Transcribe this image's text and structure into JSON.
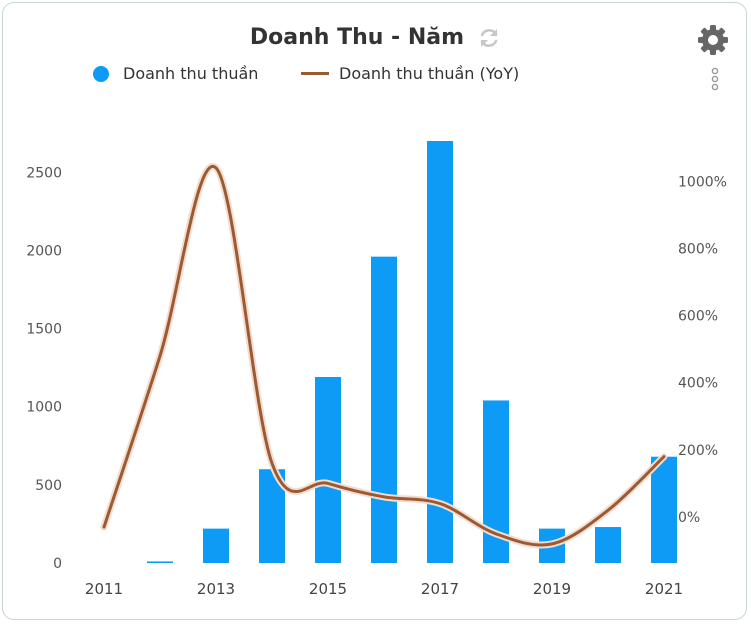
{
  "header": {
    "title": "Doanh Thu - Năm"
  },
  "icons": {
    "refresh": "refresh-icon",
    "settings": "gear-icon",
    "more": "more-vertical-icon"
  },
  "legend": {
    "bar_label": "Doanh thu thuần",
    "line_label": "Doanh thu thuần (YoY)"
  },
  "colors": {
    "bar": "#0d9bf5",
    "line": "#9c5a33",
    "axis_text": "#555555"
  },
  "chart_data": {
    "type": "bar",
    "x": [
      2011,
      2012,
      2013,
      2014,
      2015,
      2016,
      2017,
      2018,
      2019,
      2020,
      2021
    ],
    "x_tick_labels": [
      "2011",
      "2013",
      "2015",
      "2017",
      "2019",
      "2021"
    ],
    "series": [
      {
        "name": "Doanh thu thuần",
        "type": "bar",
        "axis": "left",
        "values": [
          0,
          10,
          220,
          600,
          1190,
          1960,
          2700,
          1040,
          220,
          230,
          680
        ]
      },
      {
        "name": "Doanh thu thuần (YoY)",
        "type": "line",
        "axis": "right",
        "smooth": true,
        "x": [
          2011,
          2012,
          2013,
          2014,
          2015,
          2016,
          2017,
          2018,
          2019,
          2020,
          2021
        ],
        "values": [
          -30,
          480,
          1040,
          160,
          100,
          60,
          40,
          -50,
          -80,
          20,
          180
        ]
      }
    ],
    "y_left": {
      "ticks": [
        0,
        500,
        1000,
        1500,
        2000,
        2500
      ],
      "tick_labels": [
        "0",
        "500",
        "1000",
        "1500",
        "2000",
        "2500"
      ],
      "range": [
        0,
        2700
      ]
    },
    "y_right": {
      "ticks": [
        0,
        200,
        400,
        600,
        800,
        1000
      ],
      "tick_labels": [
        "0%",
        "200%",
        "400%",
        "600%",
        "800%",
        "1000%"
      ],
      "range": [
        -137,
        1120
      ]
    },
    "grid": false,
    "legend_position": "top-left"
  }
}
